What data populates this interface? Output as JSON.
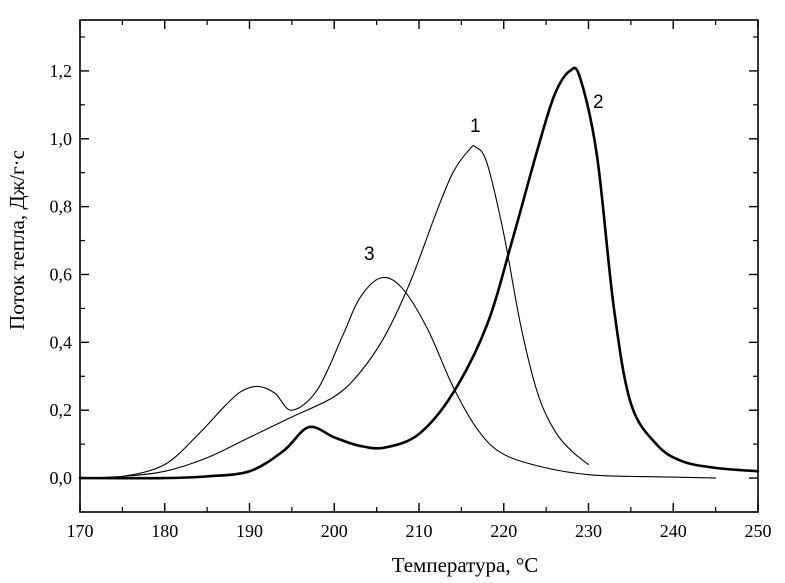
{
  "chart_data": {
    "type": "line",
    "xlabel": "Температура, °C",
    "ylabel": "Поток тепла, Дж/г·с",
    "xlim": [
      170,
      250
    ],
    "ylim": [
      -0.1,
      1.35
    ],
    "x_ticks": [
      170,
      180,
      190,
      200,
      210,
      220,
      230,
      240,
      250
    ],
    "x_tick_labels": [
      "170",
      "180",
      "190",
      "200",
      "210",
      "220",
      "230",
      "240",
      "250"
    ],
    "y_ticks": [
      0.0,
      0.2,
      0.4,
      0.6,
      0.8,
      1.0,
      1.2
    ],
    "y_tick_labels": [
      "0,0",
      "0,2",
      "0,4",
      "0,6",
      "0,8",
      "1,0",
      "1,2"
    ],
    "grid": false,
    "legend": "none",
    "series": [
      {
        "label": "1",
        "stroke": "thin",
        "x": [
          170,
          175,
          180,
          185,
          190,
          195,
          200,
          203,
          206,
          209,
          212,
          214,
          216,
          216.7,
          218,
          220,
          222,
          224,
          226,
          228,
          230
        ],
        "y": [
          0.0,
          0.005,
          0.02,
          0.06,
          0.12,
          0.18,
          0.24,
          0.31,
          0.42,
          0.58,
          0.78,
          0.9,
          0.97,
          0.975,
          0.93,
          0.72,
          0.45,
          0.25,
          0.14,
          0.08,
          0.04
        ]
      },
      {
        "label": "2",
        "stroke": "thick",
        "x": [
          170,
          180,
          185,
          190,
          194,
          197,
          200,
          203,
          206,
          210,
          214,
          218,
          221,
          224,
          226,
          227.8,
          229,
          231,
          233,
          235,
          238,
          241,
          245,
          250
        ],
        "y": [
          0.0,
          0.0,
          0.005,
          0.02,
          0.08,
          0.15,
          0.12,
          0.095,
          0.09,
          0.13,
          0.25,
          0.45,
          0.7,
          0.97,
          1.13,
          1.2,
          1.18,
          0.95,
          0.5,
          0.22,
          0.1,
          0.05,
          0.03,
          0.02
        ]
      },
      {
        "label": "3",
        "stroke": "thin",
        "x": [
          170,
          175,
          180,
          184,
          187,
          189,
          191,
          193,
          195,
          198,
          201,
          203,
          205.5,
          208,
          211,
          214,
          217,
          220,
          225,
          230,
          235,
          240,
          245
        ],
        "y": [
          0.0,
          0.005,
          0.04,
          0.13,
          0.21,
          0.255,
          0.27,
          0.25,
          0.2,
          0.26,
          0.42,
          0.53,
          0.59,
          0.56,
          0.44,
          0.27,
          0.14,
          0.07,
          0.03,
          0.01,
          0.005,
          0.003,
          0.0
        ]
      }
    ]
  }
}
